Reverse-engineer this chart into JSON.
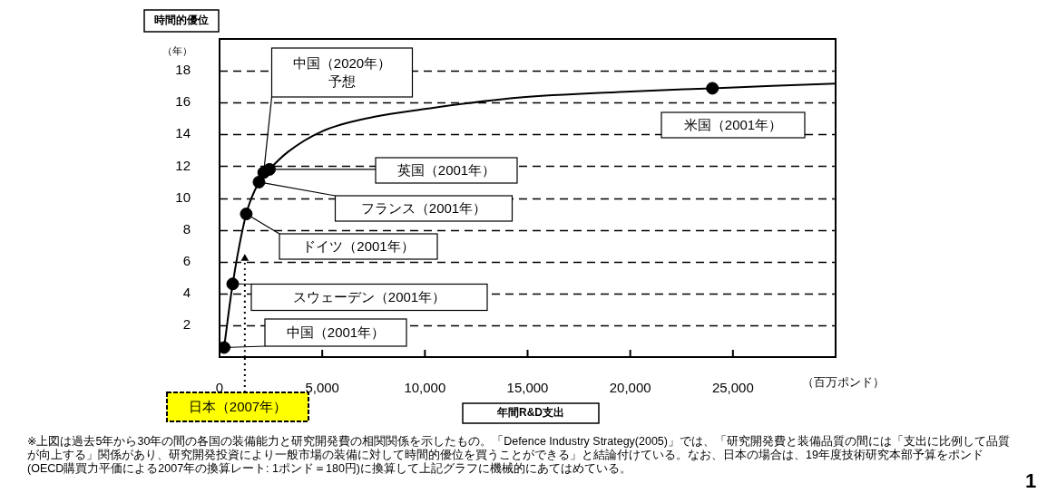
{
  "chart_data": {
    "type": "line",
    "ylabel": "時間的優位",
    "xlabel": "年間R&D支出",
    "xlim": [
      0,
      30000
    ],
    "xticks": [
      0,
      {
        "value": 5000,
        "label": "5,000"
      },
      {
        "value": 10000,
        "label": "10,000"
      },
      {
        "value": 15000,
        "label": "15,000"
      },
      {
        "value": 20000,
        "label": "20,000"
      },
      {
        "value": 25000,
        "label": "25,000"
      }
    ],
    "ylim": [
      0,
      20
    ],
    "yticks": [
      2,
      4,
      6,
      8,
      10,
      12,
      14,
      16,
      18
    ],
    "grid": "y",
    "legend": false,
    "series": [
      {
        "type": "line",
        "color": "#000000",
        "marker": "none",
        "line_style": "solid",
        "x": [
          220,
          640,
          1300,
          1920,
          2430,
          3330,
          5000,
          7500,
          10000,
          14400,
          20000,
          24000,
          30000
        ],
        "values": [
          0.6,
          4.6,
          9,
          11,
          11.8,
          12.9,
          14.2,
          15.1,
          15.6,
          16.3,
          16.7,
          16.9,
          17.2
        ]
      },
      {
        "type": "scatter",
        "color": "#000000",
        "marker": "circle",
        "x": [
          220,
          640,
          1300,
          1920,
          2430,
          2150,
          24000
        ],
        "values": [
          0.6,
          4.6,
          9,
          11,
          11.8,
          11.6,
          16.9
        ]
      },
      {
        "type": "line",
        "color": "#000000",
        "marker": "triangle",
        "line_style": "dotted",
        "x": [
          1230,
          1230
        ],
        "values": [
          0,
          6.2
        ]
      }
    ],
    "annotations": [
      "中国（2020年）予想",
      "英国（2001年）",
      "フランス（2001年）",
      "ドイツ（2001年）",
      "スウェーデン（2001年）",
      "中国（2001年）",
      "米国（2001年）",
      "日本（2007年）",
      "（年）",
      "（百万ポンド）",
      "※上図は過去5年から30年の間の各国の装備能力と研究開発費の相関関係を示したもの。「Defence Industry Strategy(2005)」では、「研究開発費と装備品質の間には「支出に比例して品質が向上する」関係があり、研究開発投資により一般市場の装備に対して時間的優位を買うことができる」と結論付けている。なお、日本の場合は、19年度技術研究本部予算をポンド(OECD購買力平価による2007年の換算レート: 1ポンド＝180円)に換算して上記グラフに機械的にあてはめている。",
      "1"
    ]
  }
}
